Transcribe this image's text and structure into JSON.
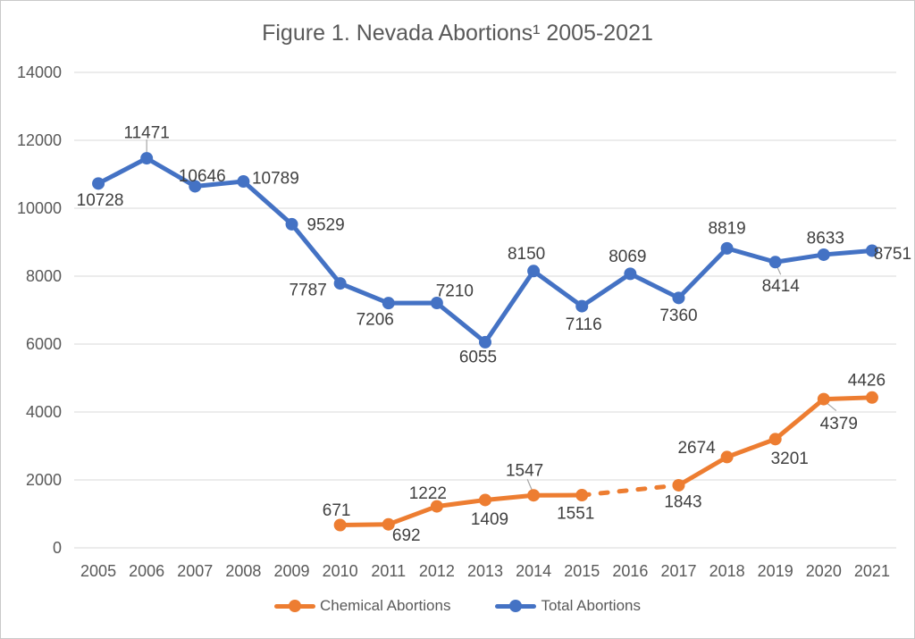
{
  "figure": {
    "background": "#ffffff",
    "border_color": "#c9c9c9"
  },
  "chart_data": {
    "type": "line",
    "title": "Figure 1. Nevada Abortions¹ 2005-2021",
    "title_color": "#595959",
    "categories": [
      "2005",
      "2006",
      "2007",
      "2008",
      "2009",
      "2010",
      "2011",
      "2012",
      "2013",
      "2014",
      "2015",
      "2016",
      "2017",
      "2018",
      "2019",
      "2020",
      "2021"
    ],
    "ylim": [
      0,
      14000
    ],
    "yticks": [
      0,
      2000,
      4000,
      6000,
      8000,
      10000,
      12000,
      14000
    ],
    "grid": true,
    "gridline_color": "#D9D9D9",
    "axis_label_color": "#595959",
    "data_label_color": "#404040",
    "leader_line_color": "#A6A6A6",
    "legend_position": "bottom-center",
    "gap_note": "chemical series has no 2016 value; gap bridged with dashed segment",
    "series": [
      {
        "name": "Chemical Abortions",
        "color": "#ED7D31",
        "values": [
          null,
          null,
          null,
          null,
          null,
          671,
          692,
          1222,
          1409,
          1547,
          1551,
          null,
          1843,
          2674,
          3201,
          4379,
          4426
        ],
        "label_offsets": [
          null,
          null,
          null,
          null,
          null,
          [
            -4,
            -17
          ],
          [
            20,
            12
          ],
          [
            -10,
            -15
          ],
          [
            5,
            21
          ],
          [
            -10,
            -28
          ],
          [
            -7,
            20
          ],
          null,
          [
            5,
            18
          ],
          [
            -34,
            -11
          ],
          [
            16,
            21
          ],
          [
            17,
            27
          ],
          [
            -6,
            -20
          ]
        ],
        "leaders": [
          {
            "index": 9,
            "from": [
              -7,
              -18
            ],
            "to": [
              -1,
              -4
            ]
          },
          {
            "index": 15,
            "from": [
              3,
              4
            ],
            "to": [
              14,
              13
            ]
          }
        ],
        "gap_style": "dashed"
      },
      {
        "name": "Total Abortions",
        "color": "#4472C4",
        "values": [
          10728,
          11471,
          10646,
          10789,
          9529,
          7787,
          7206,
          7210,
          6055,
          8150,
          7116,
          8069,
          7360,
          8819,
          8414,
          8633,
          8751
        ],
        "label_offsets": [
          [
            2,
            18
          ],
          [
            0,
            -29
          ],
          [
            8,
            -12
          ],
          [
            36,
            -4
          ],
          [
            38,
            0
          ],
          [
            -36,
            7
          ],
          [
            -15,
            18
          ],
          [
            20,
            -14
          ],
          [
            -8,
            16
          ],
          [
            -8,
            -20
          ],
          [
            2,
            20
          ],
          [
            -3,
            -20
          ],
          [
            0,
            19
          ],
          [
            0,
            -23
          ],
          [
            6,
            26
          ],
          [
            2,
            -19
          ],
          [
            23,
            3
          ]
        ],
        "leaders": [
          {
            "index": 1,
            "from": [
              0,
              -21
            ],
            "to": [
              0,
              -6
            ]
          },
          {
            "index": 14,
            "from": [
              1,
              3
            ],
            "to": [
              6,
              14
            ]
          }
        ]
      }
    ]
  }
}
